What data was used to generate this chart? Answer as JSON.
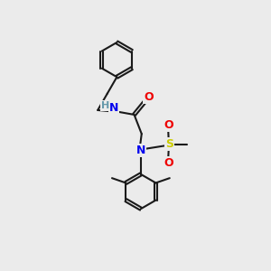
{
  "bg_color": "#ebebeb",
  "bond_color": "#1a1a1a",
  "bond_width": 1.5,
  "atom_colors": {
    "N": "#0000ee",
    "O": "#ee0000",
    "S": "#cccc00",
    "C": "#1a1a1a",
    "H": "#6699aa"
  }
}
